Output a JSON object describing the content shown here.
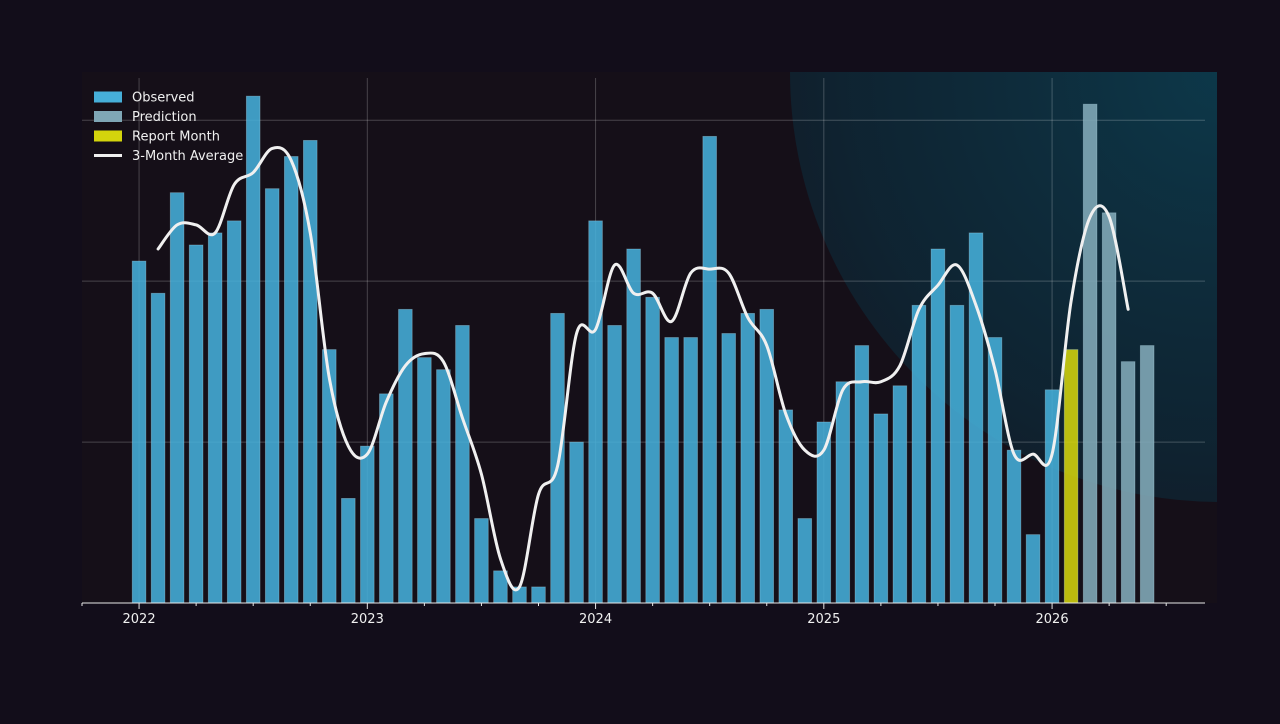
{
  "chart_data": {
    "type": "bar",
    "title": "",
    "xlabel": "",
    "ylabel": "",
    "x_ticks": [
      {
        "label": "2022",
        "t": 2022.0
      },
      {
        "label": "2023",
        "t": 2023.0
      },
      {
        "label": "2024",
        "t": 2024.0
      },
      {
        "label": "2025",
        "t": 2025.0
      },
      {
        "label": "2026",
        "t": 2026.0
      }
    ],
    "xlim": [
      2021.75,
      2026.67
    ],
    "ylim": [
      0,
      132
    ],
    "grid": true,
    "legend_position": "top-left",
    "legend": [
      {
        "label": "Observed",
        "kind": "patch",
        "color": "#46afd9"
      },
      {
        "label": "Prediction",
        "kind": "patch",
        "color": "#7fa7b6"
      },
      {
        "label": "Report Month",
        "kind": "patch",
        "color": "#d4d40c"
      },
      {
        "label": "3-Month Average",
        "kind": "line",
        "color": "#f0f0f0"
      }
    ],
    "series": [
      {
        "name": "Observed",
        "color": "#46afd9",
        "x": [
          2022.0,
          2022.0833,
          2022.1667,
          2022.25,
          2022.3333,
          2022.4167,
          2022.5,
          2022.5833,
          2022.6667,
          2022.75,
          2022.8333,
          2022.9167,
          2023.0,
          2023.0833,
          2023.1667,
          2023.25,
          2023.3333,
          2023.4167,
          2023.5,
          2023.5833,
          2023.6667,
          2023.75,
          2023.8333,
          2023.9167,
          2024.0,
          2024.0833,
          2024.1667,
          2024.25,
          2024.3333,
          2024.4167,
          2024.5,
          2024.5833,
          2024.6667,
          2024.75,
          2024.8333,
          2024.9167,
          2025.0,
          2025.0833,
          2025.1667,
          2025.25,
          2025.3333,
          2025.4167,
          2025.5,
          2025.5833,
          2025.6667,
          2025.75,
          2025.8333,
          2025.9167,
          2026.0
        ],
        "values": [
          85,
          77,
          102,
          89,
          92,
          95,
          126,
          103,
          111,
          115,
          63,
          26,
          39,
          52,
          73,
          61,
          58,
          69,
          21,
          8,
          4,
          4,
          72,
          40,
          95,
          69,
          88,
          76,
          66,
          66,
          116,
          67,
          72,
          73,
          48,
          21,
          45,
          55,
          64,
          47,
          54,
          74,
          88,
          74,
          92,
          66,
          38,
          17,
          53
        ]
      },
      {
        "name": "Report Month",
        "color": "#d4d40c",
        "x": [
          2026.0833
        ],
        "values": [
          63
        ]
      },
      {
        "name": "Prediction",
        "color": "#7fa7b6",
        "x": [
          2026.1667,
          2026.25,
          2026.3333,
          2026.4167
        ],
        "values": [
          124,
          97,
          60,
          64
        ]
      },
      {
        "name": "3-Month Average",
        "type": "line",
        "color": "#f0f0f0",
        "x": [
          2022.0833,
          2022.1667,
          2022.25,
          2022.3333,
          2022.4167,
          2022.5,
          2022.5833,
          2022.6667,
          2022.75,
          2022.8333,
          2022.9167,
          2023.0,
          2023.0833,
          2023.1667,
          2023.25,
          2023.3333,
          2023.4167,
          2023.5,
          2023.5833,
          2023.6667,
          2023.75,
          2023.8333,
          2023.9167,
          2024.0,
          2024.0833,
          2024.1667,
          2024.25,
          2024.3333,
          2024.4167,
          2024.5,
          2024.5833,
          2024.6667,
          2024.75,
          2024.8333,
          2024.9167,
          2025.0,
          2025.0833,
          2025.1667,
          2025.25,
          2025.3333,
          2025.4167,
          2025.5,
          2025.5833,
          2025.6667,
          2025.75,
          2025.8333,
          2025.9167,
          2026.0,
          2026.0833,
          2026.1667,
          2026.25,
          2026.3333
        ],
        "values": [
          88,
          94,
          94,
          92,
          104,
          107,
          113,
          110,
          92,
          56,
          39,
          37,
          50,
          59,
          62,
          60,
          46,
          32,
          11,
          4,
          27,
          34,
          67,
          68,
          84,
          77,
          77,
          70,
          82,
          83,
          82,
          71,
          64,
          47,
          38,
          38,
          53,
          55,
          55,
          59,
          73,
          79,
          84,
          74,
          58,
          37,
          37,
          37,
          75,
          96,
          96,
          73
        ]
      }
    ]
  }
}
